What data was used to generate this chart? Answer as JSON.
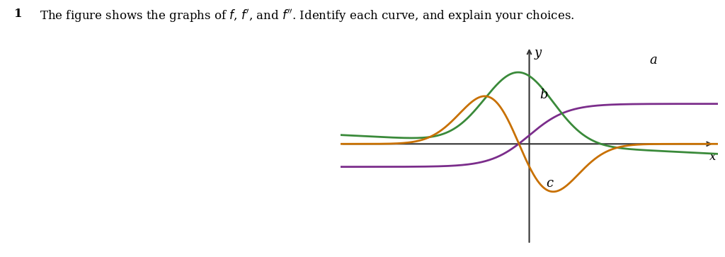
{
  "problem_number": "1",
  "title": "The figure shows the graphs of $f$, $f'$, and $f''$. Identify each curve, and explain your choices.",
  "curve_a_color": "#7B2D8B",
  "curve_b_color": "#3A8A3A",
  "curve_c_color": "#C87000",
  "axis_color": "#333333",
  "background_color": "#ffffff",
  "label_a": "a",
  "label_b": "b",
  "label_c": "c",
  "x_label": "x",
  "y_label": "y",
  "xlim": [
    -5.5,
    5.5
  ],
  "ylim": [
    -3.5,
    3.5
  ],
  "figsize": [
    10.24,
    3.63
  ],
  "dpi": 100
}
